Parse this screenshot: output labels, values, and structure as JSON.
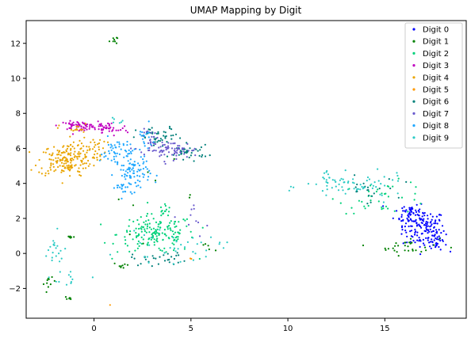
{
  "chart_data": {
    "type": "scatter",
    "title": "UMAP Mapping by Digit",
    "xlabel": "",
    "ylabel": "",
    "xlim": [
      -3.5,
      19.2
    ],
    "ylim": [
      -3.7,
      13.3
    ],
    "xticks": [
      0,
      5,
      10,
      15
    ],
    "yticks": [
      -2,
      0,
      2,
      4,
      6,
      8,
      10,
      12
    ],
    "grid": false,
    "legend_position": "top-right",
    "series": [
      {
        "name": "Digit 0",
        "color": "#0000ff",
        "clusters": [
          {
            "cx": 17.0,
            "cy": 1.4,
            "sx": 0.55,
            "sy": 0.55,
            "n": 140
          },
          {
            "cx": 16.3,
            "cy": 2.3,
            "sx": 0.4,
            "sy": 0.35,
            "n": 50
          },
          {
            "cx": 17.7,
            "cy": 0.6,
            "sx": 0.25,
            "sy": 0.25,
            "n": 25
          }
        ]
      },
      {
        "name": "Digit 1",
        "color": "#008000",
        "clusters": [
          {
            "cx": 1.0,
            "cy": 12.2,
            "sx": 0.1,
            "sy": 0.12,
            "n": 8
          },
          {
            "cx": 16.2,
            "cy": 0.4,
            "sx": 0.8,
            "sy": 0.25,
            "n": 30
          },
          {
            "cx": -2.3,
            "cy": -1.7,
            "sx": 0.15,
            "sy": 0.15,
            "n": 10
          },
          {
            "cx": -1.3,
            "cy": -2.6,
            "sx": 0.1,
            "sy": 0.08,
            "n": 6
          },
          {
            "cx": -1.2,
            "cy": 0.95,
            "sx": 0.12,
            "sy": 0.05,
            "n": 6
          },
          {
            "cx": 1.5,
            "cy": -0.7,
            "sx": 0.25,
            "sy": 0.1,
            "n": 8
          },
          {
            "cx": 3.0,
            "cy": 3.2,
            "sx": 1.2,
            "sy": 1.0,
            "n": 10
          },
          {
            "cx": 6.0,
            "cy": 0.35,
            "sx": 0.4,
            "sy": 0.1,
            "n": 5
          }
        ]
      },
      {
        "name": "Digit 2",
        "color": "#00d27a",
        "clusters": [
          {
            "cx": 3.2,
            "cy": 1.1,
            "sx": 1.0,
            "sy": 0.55,
            "n": 170
          },
          {
            "cx": 15.0,
            "cy": 3.2,
            "sx": 1.2,
            "sy": 0.45,
            "n": 40
          },
          {
            "cx": 3.6,
            "cy": 2.5,
            "sx": 0.2,
            "sy": 0.2,
            "n": 10
          }
        ]
      },
      {
        "name": "Digit 3",
        "color": "#c000c0",
        "clusters": [
          {
            "cx": -0.8,
            "cy": 7.3,
            "sx": 0.5,
            "sy": 0.12,
            "n": 60
          },
          {
            "cx": 0.6,
            "cy": 7.1,
            "sx": 0.6,
            "sy": 0.2,
            "n": 45
          }
        ]
      },
      {
        "name": "Digit 4",
        "color": "#eaa500",
        "clusters": [
          {
            "cx": -1.5,
            "cy": 5.3,
            "sx": 0.7,
            "sy": 0.45,
            "n": 160
          },
          {
            "cx": -0.4,
            "cy": 6.0,
            "sx": 0.5,
            "sy": 0.35,
            "n": 50
          },
          {
            "cx": -1.0,
            "cy": 7.1,
            "sx": 0.4,
            "sy": 0.15,
            "n": 15
          }
        ]
      },
      {
        "name": "Digit 5",
        "color": "#ff9900",
        "clusters": [
          {
            "cx": 0.8,
            "cy": -2.9,
            "sx": 0.05,
            "sy": 0.05,
            "n": 1
          },
          {
            "cx": 5.0,
            "cy": -0.3,
            "sx": 0.05,
            "sy": 0.05,
            "n": 2
          }
        ]
      },
      {
        "name": "Digit 6",
        "color": "#00807a",
        "clusters": [
          {
            "cx": 3.4,
            "cy": 6.6,
            "sx": 0.6,
            "sy": 0.3,
            "n": 45
          },
          {
            "cx": 4.9,
            "cy": 5.8,
            "sx": 0.5,
            "sy": 0.2,
            "n": 35
          },
          {
            "cx": 3.5,
            "cy": -0.3,
            "sx": 0.8,
            "sy": 0.2,
            "n": 30
          },
          {
            "cx": 14.0,
            "cy": 3.6,
            "sx": 0.8,
            "sy": 0.4,
            "n": 20
          }
        ]
      },
      {
        "name": "Digit 7",
        "color": "#6a5acd",
        "clusters": [
          {
            "cx": 4.0,
            "cy": 5.9,
            "sx": 0.7,
            "sy": 0.25,
            "n": 70
          },
          {
            "cx": 3.0,
            "cy": 6.5,
            "sx": 0.3,
            "sy": 0.3,
            "n": 20
          },
          {
            "cx": 5.3,
            "cy": 2.0,
            "sx": 0.3,
            "sy": 0.5,
            "n": 10
          }
        ]
      },
      {
        "name": "Digit 8",
        "color": "#1ea7ff",
        "clusters": [
          {
            "cx": 2.0,
            "cy": 4.6,
            "sx": 0.45,
            "sy": 0.5,
            "n": 90
          },
          {
            "cx": 1.2,
            "cy": 5.8,
            "sx": 0.45,
            "sy": 0.4,
            "n": 50
          },
          {
            "cx": 2.6,
            "cy": 6.5,
            "sx": 0.2,
            "sy": 0.4,
            "n": 20
          },
          {
            "cx": 1.5,
            "cy": 3.9,
            "sx": 0.3,
            "sy": 0.15,
            "n": 12
          }
        ]
      },
      {
        "name": "Digit 9",
        "color": "#2bcbc5",
        "clusters": [
          {
            "cx": 13.5,
            "cy": 3.8,
            "sx": 1.3,
            "sy": 0.35,
            "n": 60
          },
          {
            "cx": 12.1,
            "cy": 4.3,
            "sx": 0.2,
            "sy": 0.3,
            "n": 15
          },
          {
            "cx": -2.0,
            "cy": 0.0,
            "sx": 0.35,
            "sy": 0.55,
            "n": 20
          },
          {
            "cx": -1.2,
            "cy": -1.3,
            "sx": 0.5,
            "sy": 0.35,
            "n": 12
          },
          {
            "cx": 4.0,
            "cy": 0.3,
            "sx": 1.3,
            "sy": 0.4,
            "n": 35
          },
          {
            "cx": 1.2,
            "cy": 7.5,
            "sx": 0.2,
            "sy": 0.15,
            "n": 6
          }
        ]
      }
    ]
  }
}
